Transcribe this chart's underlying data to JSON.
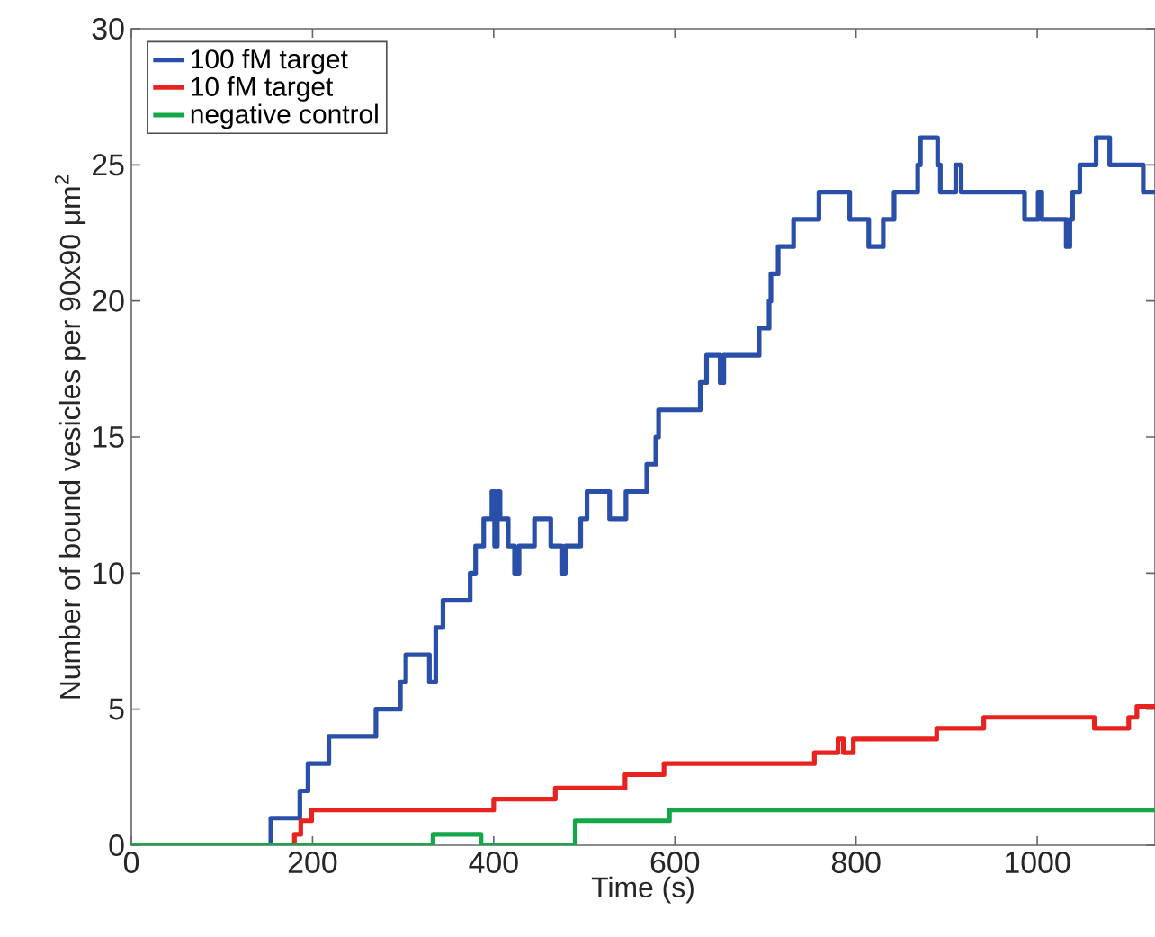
{
  "chart_data": {
    "type": "step",
    "xlabel": "Time (s)",
    "ylabel": "Number of bound vesicles per 90x90 μm$^{2}$",
    "xlim": [
      0,
      1130
    ],
    "ylim": [
      0,
      30
    ],
    "xticks": [
      0,
      200,
      400,
      600,
      800,
      1000
    ],
    "yticks": [
      0,
      5,
      10,
      15,
      20,
      25,
      30
    ],
    "legend": "top left",
    "series": [
      {
        "name": "100 fM target",
        "color": "#2a4fa8",
        "x": [
          0,
          154,
          186,
          195,
          218,
          270,
          297,
          303,
          329,
          336,
          344,
          374,
          380,
          389,
          398,
          401,
          404,
          407,
          416,
          423,
          428,
          433,
          445,
          463,
          475,
          479,
          485,
          496,
          503,
          528,
          546,
          569,
          579,
          582,
          628,
          635,
          650,
          654,
          693,
          704,
          706,
          714,
          731,
          759,
          793,
          814,
          830,
          842,
          868,
          871,
          890,
          893,
          910,
          916,
          986,
          1001,
          1005,
          1032,
          1036,
          1039,
          1047,
          1065,
          1080,
          1117,
          1130
        ],
        "values": [
          0,
          1,
          2,
          3,
          4,
          5,
          6,
          7,
          6,
          8,
          9,
          10,
          11,
          12,
          13,
          11,
          13,
          12,
          11,
          10,
          11,
          11,
          12,
          11,
          10,
          11,
          11,
          12,
          13,
          12,
          13,
          14,
          15,
          16,
          17,
          18,
          17,
          18,
          19,
          20,
          21,
          22,
          23,
          24,
          23,
          22,
          23,
          24,
          25,
          26,
          25,
          24,
          25,
          24,
          23,
          24,
          23,
          22,
          23,
          24,
          25,
          26,
          25,
          24,
          24
        ]
      },
      {
        "name": "10 fM target",
        "color": "#e8231f",
        "x": [
          0,
          180,
          187,
          199,
          400,
          468,
          545,
          588,
          754,
          780,
          786,
          797,
          889,
          941,
          1063,
          1101,
          1110,
          1130
        ],
        "values": [
          0,
          0.4,
          0.9,
          1.3,
          1.7,
          2.1,
          2.6,
          3.0,
          3.4,
          3.9,
          3.4,
          3.9,
          4.3,
          4.7,
          4.3,
          4.7,
          5.1,
          5.1
        ]
      },
      {
        "name": "negative control",
        "color": "#12a84a",
        "x": [
          0,
          333,
          386,
          490,
          594,
          1130
        ],
        "values": [
          0,
          0.4,
          0,
          0.9,
          1.3,
          1.3
        ]
      }
    ]
  }
}
